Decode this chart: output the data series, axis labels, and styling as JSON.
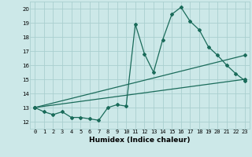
{
  "xlabel": "Humidex (Indice chaleur)",
  "bg_color": "#cce8e8",
  "grid_color": "#aacfcf",
  "line_color": "#1a6b5a",
  "xlim": [
    -0.5,
    23.5
  ],
  "ylim": [
    11.5,
    20.5
  ],
  "xticks": [
    0,
    1,
    2,
    3,
    4,
    5,
    6,
    7,
    8,
    9,
    10,
    11,
    12,
    13,
    14,
    15,
    16,
    17,
    18,
    19,
    20,
    21,
    22,
    23
  ],
  "yticks": [
    12,
    13,
    14,
    15,
    16,
    17,
    18,
    19,
    20
  ],
  "series1_x": [
    0,
    1,
    2,
    3,
    4,
    5,
    6,
    7,
    8,
    9,
    10,
    11,
    12,
    13,
    14,
    15,
    16,
    17,
    18,
    19,
    20,
    21,
    22,
    23
  ],
  "series1_y": [
    13.0,
    12.7,
    12.5,
    12.7,
    12.3,
    12.3,
    12.2,
    12.1,
    13.0,
    13.2,
    13.1,
    18.9,
    16.8,
    15.5,
    17.8,
    19.6,
    20.1,
    19.1,
    18.5,
    17.3,
    16.7,
    16.0,
    15.4,
    14.9
  ],
  "series2_x": [
    0,
    23
  ],
  "series2_y": [
    13.0,
    15.0
  ],
  "series3_x": [
    0,
    23
  ],
  "series3_y": [
    13.0,
    16.7
  ],
  "marker": "D",
  "marker_size": 2.0,
  "line_width": 0.9,
  "tick_fontsize": 5.0,
  "xlabel_fontsize": 6.5
}
